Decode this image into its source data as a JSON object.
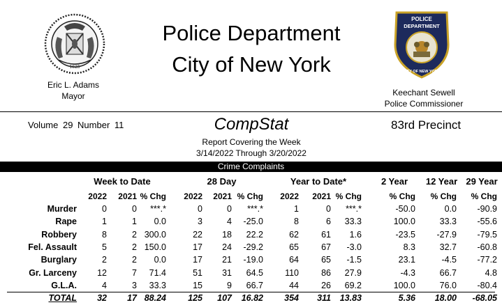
{
  "header": {
    "title_line1": "Police Department",
    "title_line2": "City of New York",
    "mayor_name": "Eric L. Adams",
    "mayor_title": "Mayor",
    "commissioner_name": "Keechant Sewell",
    "commissioner_title": "Police Commissioner",
    "seal_year": "1625",
    "patch_top": "POLICE",
    "patch_mid": "DEPARTMENT",
    "patch_bottom": "CITY OF NEW YORK"
  },
  "report": {
    "volume": "Volume 29   Number  11",
    "name": "CompStat",
    "precinct": "83rd Precinct",
    "covering": "Report Covering the Week",
    "dates": "3/14/2022  Through  3/20/2022"
  },
  "section_title": "Crime Complaints",
  "groups": [
    "Week to Date",
    "28 Day",
    "Year to Date*",
    "2 Year",
    "12 Year",
    "29 Year"
  ],
  "columns": [
    "2022",
    "2021",
    "% Chg",
    "2022",
    "2021",
    "% Chg",
    "2022",
    "2021",
    "% Chg",
    "% Chg",
    "% Chg",
    "% Chg"
  ],
  "rows": [
    {
      "label": "Murder",
      "values": [
        "0",
        "0",
        "***.*",
        "0",
        "0",
        "***.*",
        "1",
        "0",
        "***.*",
        "-50.0",
        "0.0",
        "-90.9"
      ]
    },
    {
      "label": "Rape",
      "values": [
        "1",
        "1",
        "0.0",
        "3",
        "4",
        "-25.0",
        "8",
        "6",
        "33.3",
        "100.0",
        "33.3",
        "-55.6"
      ]
    },
    {
      "label": "Robbery",
      "values": [
        "8",
        "2",
        "300.0",
        "22",
        "18",
        "22.2",
        "62",
        "61",
        "1.6",
        "-23.5",
        "-27.9",
        "-79.5"
      ]
    },
    {
      "label": "Fel. Assault",
      "values": [
        "5",
        "2",
        "150.0",
        "17",
        "24",
        "-29.2",
        "65",
        "67",
        "-3.0",
        "8.3",
        "32.7",
        "-60.8"
      ]
    },
    {
      "label": "Burglary",
      "values": [
        "2",
        "2",
        "0.0",
        "17",
        "21",
        "-19.0",
        "64",
        "65",
        "-1.5",
        "23.1",
        "-4.5",
        "-77.2"
      ]
    },
    {
      "label": "Gr. Larceny",
      "values": [
        "12",
        "7",
        "71.4",
        "51",
        "31",
        "64.5",
        "110",
        "86",
        "27.9",
        "-4.3",
        "66.7",
        "4.8"
      ]
    },
    {
      "label": "G.L.A.",
      "values": [
        "4",
        "3",
        "33.3",
        "15",
        "9",
        "66.7",
        "44",
        "26",
        "69.2",
        "100.0",
        "76.0",
        "-80.4"
      ]
    }
  ],
  "total": {
    "label": "TOTAL",
    "values": [
      "32",
      "17",
      "88.24",
      "125",
      "107",
      "16.82",
      "354",
      "311",
      "13.83",
      "5.36",
      "18.00",
      "-68.05"
    ]
  }
}
